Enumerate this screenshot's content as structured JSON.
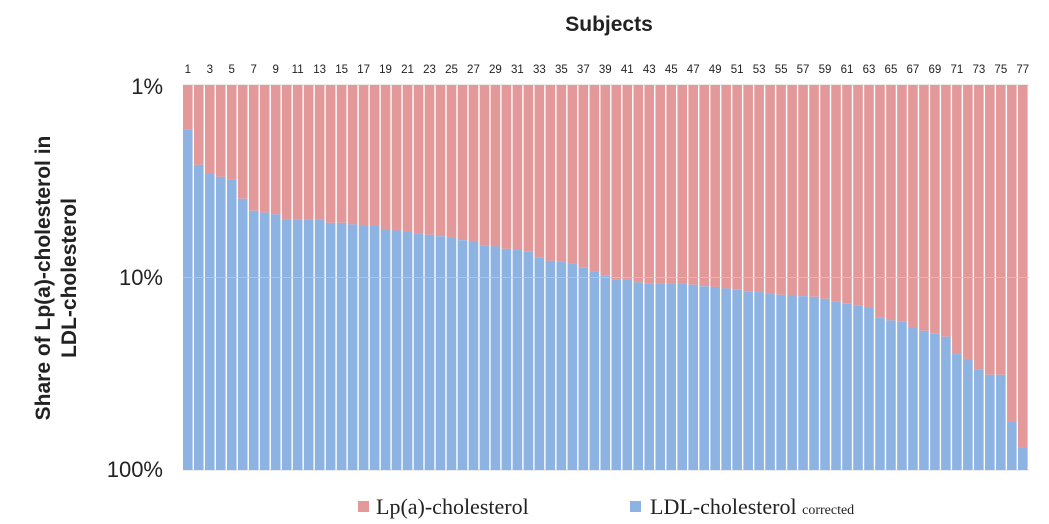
{
  "chart_data": {
    "type": "bar",
    "stacked": true,
    "title": "Subjects",
    "ylabel_line1": "Share of Lp(a)-cholesterol  in",
    "ylabel_line2": "LDL-cholesterol",
    "y_scale": "log",
    "y_inverted": true,
    "ylim": [
      1,
      100
    ],
    "y_ticks": [
      "1%",
      "10%",
      "100%"
    ],
    "grid": true,
    "legend_position": "bottom",
    "categories": [
      1,
      2,
      3,
      4,
      5,
      6,
      7,
      8,
      9,
      10,
      11,
      12,
      13,
      14,
      15,
      16,
      17,
      18,
      19,
      20,
      21,
      22,
      23,
      24,
      25,
      26,
      27,
      28,
      29,
      30,
      31,
      32,
      33,
      34,
      35,
      36,
      37,
      38,
      39,
      40,
      41,
      42,
      43,
      44,
      45,
      46,
      47,
      48,
      49,
      50,
      51,
      52,
      53,
      54,
      55,
      56,
      57,
      58,
      59,
      60,
      61,
      62,
      63,
      64,
      65,
      66,
      67,
      68,
      69,
      70,
      71,
      72,
      73,
      74,
      75,
      76,
      77
    ],
    "x_tick_labels": [
      "1",
      "3",
      "5",
      "7",
      "9",
      "11",
      "13",
      "15",
      "17",
      "19",
      "21",
      "23",
      "25",
      "27",
      "29",
      "31",
      "33",
      "35",
      "37",
      "39",
      "41",
      "43",
      "45",
      "47",
      "49",
      "51",
      "53",
      "55",
      "57",
      "59",
      "61",
      "63",
      "65",
      "67",
      "69",
      "71",
      "73",
      "75",
      "77"
    ],
    "series": [
      {
        "name": "Lp(a)-cholesterol",
        "color": "#e39999",
        "values": [
          1.7,
          2.6,
          2.9,
          3.0,
          3.1,
          3.9,
          4.5,
          4.6,
          4.7,
          5.0,
          5.0,
          5.0,
          5.0,
          5.2,
          5.2,
          5.3,
          5.4,
          5.4,
          5.6,
          5.7,
          5.8,
          5.9,
          6.0,
          6.1,
          6.2,
          6.4,
          6.5,
          6.8,
          6.9,
          7.1,
          7.2,
          7.3,
          7.9,
          8.2,
          8.3,
          8.5,
          8.9,
          9.3,
          9.8,
          10.2,
          10.3,
          10.6,
          10.7,
          10.8,
          10.8,
          10.8,
          10.9,
          11.1,
          11.2,
          11.4,
          11.5,
          11.8,
          11.9,
          12.1,
          12.3,
          12.4,
          12.5,
          12.6,
          12.9,
          13.3,
          13.6,
          14.0,
          14.4,
          16.2,
          16.7,
          17.0,
          18.3,
          18.9,
          19.6,
          20.3,
          25.0,
          26.5,
          30.0,
          32.0,
          32.0,
          56.0,
          76.0
        ]
      },
      {
        "name": "LDL-cholesterol corrected",
        "color": "#8db3e3",
        "values": [
          98.3,
          97.4,
          97.1,
          97.0,
          96.9,
          96.1,
          95.5,
          95.4,
          95.3,
          95.0,
          95.0,
          95.0,
          95.0,
          94.8,
          94.8,
          94.7,
          94.6,
          94.6,
          94.4,
          94.3,
          94.2,
          94.1,
          94.0,
          93.9,
          93.8,
          93.6,
          93.5,
          93.2,
          93.1,
          92.9,
          92.8,
          92.7,
          92.1,
          91.8,
          91.7,
          91.5,
          91.1,
          90.7,
          90.2,
          89.8,
          89.7,
          89.4,
          89.3,
          89.2,
          89.2,
          89.2,
          89.1,
          88.9,
          88.8,
          88.6,
          88.5,
          88.2,
          88.1,
          87.9,
          87.7,
          87.6,
          87.5,
          87.4,
          87.1,
          86.7,
          86.4,
          86.0,
          85.6,
          83.8,
          83.3,
          83.0,
          81.7,
          81.1,
          80.4,
          79.7,
          75.0,
          73.5,
          70.0,
          68.0,
          68.0,
          44.0,
          24.0
        ]
      }
    ],
    "legend": [
      {
        "label": "Lp(a)-cholesterol",
        "suffix": "",
        "color": "#e39999"
      },
      {
        "label": "LDL-cholesterol ",
        "suffix": "corrected",
        "color": "#8db3e3"
      }
    ]
  }
}
